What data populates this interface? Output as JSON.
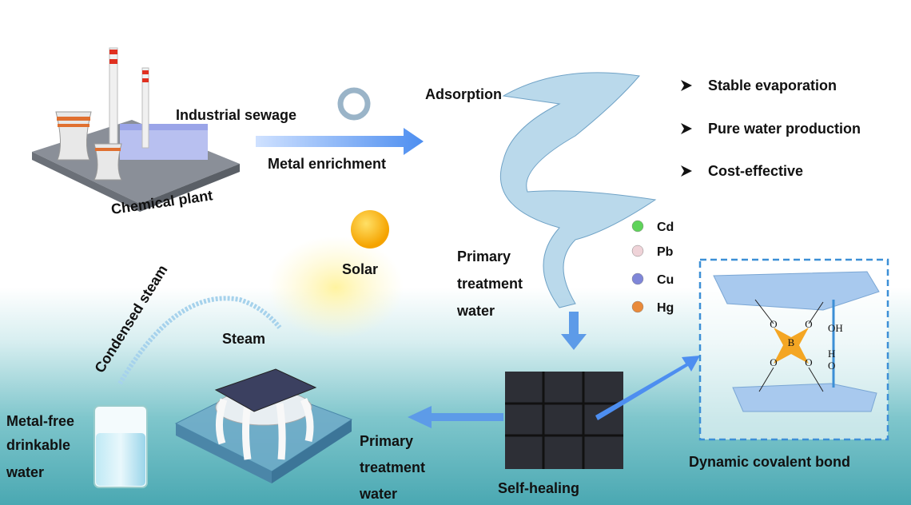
{
  "chemical_plant": {
    "label": "Chemical plant"
  },
  "sewage_arrow": {
    "top": "Industrial sewage",
    "bottom": "Metal enrichment"
  },
  "adsorption": {
    "label": "Adsorption"
  },
  "advantages": [
    "Stable evaporation",
    "Pure water production",
    "Cost-effective"
  ],
  "legend": [
    {
      "label": "Cd",
      "color": "#5fd35a"
    },
    {
      "label": "Pb",
      "color": "#efd3d8"
    },
    {
      "label": "Cu",
      "color": "#7f86d8"
    },
    {
      "label": "Hg",
      "color": "#e98a3a"
    }
  ],
  "primary_water_top": {
    "lines": [
      "Primary",
      "treatment",
      "water"
    ]
  },
  "solar": {
    "label": "Solar"
  },
  "condensed_steam": {
    "label": "Condensed steam"
  },
  "steam": {
    "label": "Steam"
  },
  "drinkable_water": {
    "lines": [
      "Metal-free",
      "drinkable",
      "water"
    ]
  },
  "primary_water_bottom": {
    "lines": [
      "Primary",
      "treatment",
      "water"
    ]
  },
  "self_healing": {
    "label": "Self-healing"
  },
  "dynamic_bond": {
    "label": "Dynamic covalent bond",
    "boron": "B",
    "oxygens": [
      "O",
      "O",
      "O",
      "O"
    ],
    "hydroxyl": "OH",
    "hydrogen": "H",
    "oxygen": "O"
  }
}
